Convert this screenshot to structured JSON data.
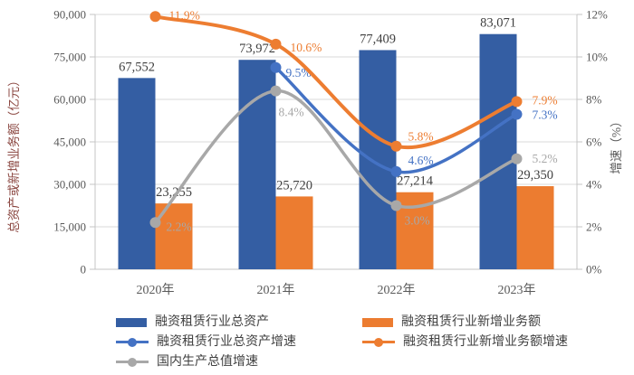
{
  "chart_data": {
    "type": "bar",
    "subtype": "combo-bar-line-dual-axis",
    "categories": [
      "2020年",
      "2021年",
      "2022年",
      "2023年"
    ],
    "series": [
      {
        "name": "融资租赁行业总资产",
        "type": "bar",
        "axis": "left",
        "color": "#345EA3",
        "values": [
          67552,
          73972,
          77409,
          83071
        ],
        "labels": [
          "67,552",
          "73,972",
          "77,409",
          "83,071"
        ]
      },
      {
        "name": "融资租赁行业新增业务额",
        "type": "bar",
        "axis": "left",
        "color": "#EC7C30",
        "values": [
          23255,
          25720,
          27214,
          29350
        ],
        "labels": [
          "23,255",
          "25,720",
          "27,214",
          "29,350"
        ]
      },
      {
        "name": "融资租赁行业总资产增速",
        "type": "line",
        "axis": "right",
        "color": "#4472C4",
        "values": [
          null,
          9.5,
          4.6,
          7.3
        ],
        "labels": [
          null,
          "9.5%",
          "4.6%",
          "7.3%"
        ],
        "label_offsets": [
          [
            0,
            0
          ],
          [
            11,
            10
          ],
          [
            13,
            -8
          ],
          [
            17,
            5
          ]
        ]
      },
      {
        "name": "融资租赁行业新增业务额增速",
        "type": "line",
        "axis": "right",
        "color": "#ED7D31",
        "values": [
          11.9,
          10.6,
          5.8,
          7.9
        ],
        "labels": [
          "11.9%",
          "10.6%",
          "5.8%",
          "7.9%"
        ],
        "label_offsets": [
          [
            15,
            3
          ],
          [
            16,
            8
          ],
          [
            13,
            -6
          ],
          [
            17,
            3
          ]
        ]
      },
      {
        "name": "国内生产总值增速",
        "type": "line",
        "axis": "right",
        "color": "#A8A8A8",
        "values": [
          2.2,
          8.4,
          3.0,
          5.2
        ],
        "labels": [
          "2.2%",
          "8.4%",
          "3.0%",
          "5.2%"
        ],
        "label_offsets": [
          [
            12,
            9
          ],
          [
            3,
            28
          ],
          [
            9,
            21
          ],
          [
            17,
            4
          ]
        ]
      }
    ],
    "left_axis": {
      "title": "总资产或新增业务额（亿元）",
      "min": 0,
      "max": 90000,
      "step": 15000,
      "tick_labels": [
        "0",
        "15,000",
        "30,000",
        "45,000",
        "60,000",
        "75,000",
        "90,000"
      ]
    },
    "right_axis": {
      "title": "增速（%）",
      "min": 0,
      "max": 12,
      "step": 2,
      "tick_labels": [
        "0%",
        "2%",
        "4%",
        "6%",
        "8%",
        "10%",
        "12%"
      ]
    },
    "grid": "horizontal-on",
    "legend_position": "bottom-two-columns"
  },
  "colors": {
    "background": "#FFFFFF",
    "gridline": "#D9D9D9",
    "axis_line": "#C4C4C4",
    "tick_text": "#595959",
    "bar_value_label": "#3F3F3F",
    "left_axis_title": "#8B4741",
    "right_axis_title": "#595959"
  }
}
